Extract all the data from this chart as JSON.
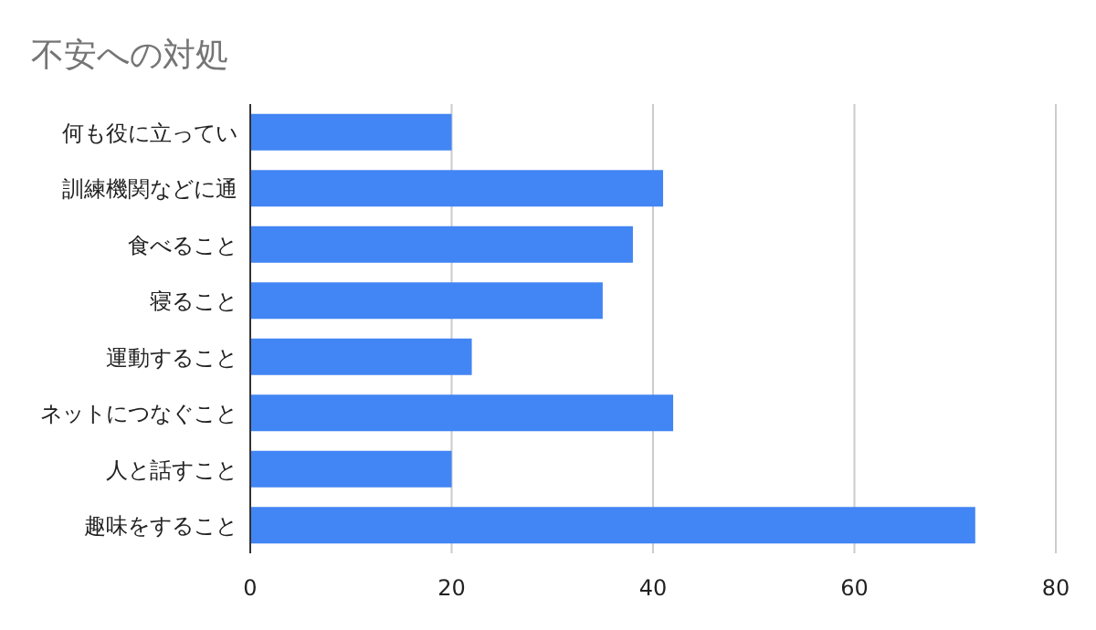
{
  "chart_data": {
    "type": "bar",
    "orientation": "horizontal",
    "title": "不安への対処",
    "categories": [
      "何も役に立ってい",
      "訓練機関などに通",
      "食べること",
      "寝ること",
      "運動すること",
      "ネットにつなぐこと",
      "人と話すこと",
      "趣味をすること"
    ],
    "values": [
      20,
      41,
      38,
      35,
      22,
      42,
      20,
      72
    ],
    "color": "#4285f4",
    "xlim": [
      0,
      80
    ],
    "xticks": [
      0,
      20,
      40,
      60,
      80
    ],
    "grid": "x"
  }
}
